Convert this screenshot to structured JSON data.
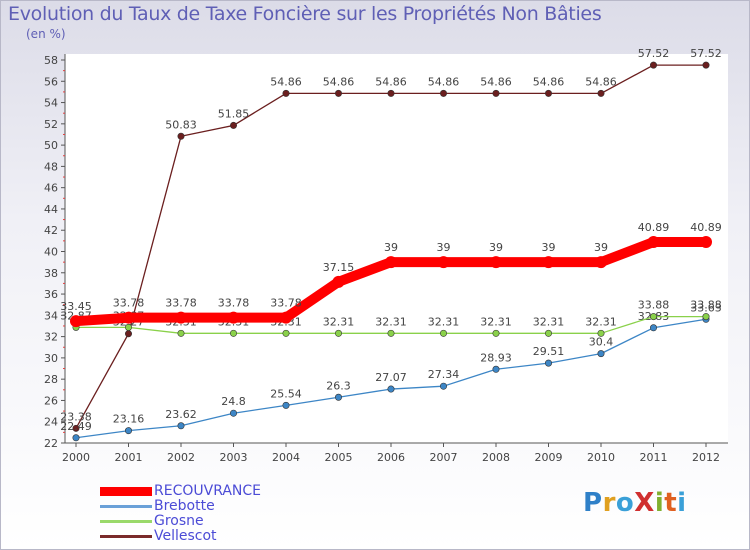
{
  "title": "Evolution du Taux de Taxe Foncière sur les Propriétés Non Bâties",
  "unit": "(en %)",
  "logo": "ProXiti",
  "chart_data": {
    "type": "line",
    "title": "Evolution du Taux de Taxe Foncière sur les Propriétés Non Bâties",
    "ylabel": "(en %)",
    "xlabel": "",
    "x": [
      "2000",
      "2001",
      "2002",
      "2003",
      "2004",
      "2005",
      "2006",
      "2007",
      "2008",
      "2009",
      "2010",
      "2011",
      "2012"
    ],
    "ylim": [
      22,
      58
    ],
    "yticks": [
      22,
      24,
      26,
      28,
      30,
      32,
      34,
      36,
      38,
      40,
      42,
      44,
      46,
      48,
      50,
      52,
      54,
      56,
      58
    ],
    "grid": false,
    "legend_position": "bottom-left",
    "series": [
      {
        "name": "Vellescot",
        "color": "#6b1f1f",
        "values": [
          23.38,
          32.27,
          50.83,
          51.85,
          54.86,
          54.86,
          54.86,
          54.86,
          54.86,
          54.86,
          54.86,
          57.52,
          57.52
        ],
        "labels": [
          "23.38",
          "32.27",
          "50.83",
          "51.85",
          "54.86",
          "54.86",
          "54.86",
          "54.86",
          "54.86",
          "54.86",
          "54.86",
          "57.52",
          "57.52"
        ]
      },
      {
        "name": "Brebotte",
        "color": "#3d86c6",
        "values": [
          22.49,
          23.16,
          23.62,
          24.8,
          25.54,
          26.3,
          27.07,
          27.34,
          28.93,
          29.51,
          30.4,
          32.83,
          33.63
        ],
        "labels": [
          "22.49",
          "23.16",
          "23.62",
          "24.8",
          "25.54",
          "26.3",
          "27.07",
          "27.34",
          "28.93",
          "29.51",
          "30.4",
          "32.83",
          "33.63"
        ]
      },
      {
        "name": "Grosne",
        "color": "#8ad14a",
        "values": [
          32.87,
          32.87,
          32.31,
          32.31,
          32.31,
          32.31,
          32.31,
          32.31,
          32.31,
          32.31,
          32.31,
          33.88,
          33.88
        ],
        "labels": [
          "32.87",
          "32.87",
          "32.31",
          "32.31",
          "32.31",
          "32.31",
          "32.31",
          "32.31",
          "32.31",
          "32.31",
          "32.31",
          "33.88",
          "33.88"
        ]
      },
      {
        "name": "RECOUVRANCE",
        "color": "#ff0000",
        "values": [
          33.45,
          33.78,
          33.78,
          33.78,
          33.78,
          37.15,
          39,
          39,
          39,
          39,
          39,
          40.89,
          40.89
        ],
        "labels": [
          "33.45",
          "33.78",
          "33.78",
          "33.78",
          "33.78",
          "37.15",
          "39",
          "39",
          "39",
          "39",
          "39",
          "40.89",
          "40.89"
        ]
      }
    ],
    "legend": [
      {
        "name": "RECOUVRANCE",
        "color": "#ff0000"
      },
      {
        "name": "Brebotte",
        "color": "#6aa0d8"
      },
      {
        "name": "Grosne",
        "color": "#9ad96a"
      },
      {
        "name": "Vellescot",
        "color": "#7a2a2a"
      }
    ]
  }
}
